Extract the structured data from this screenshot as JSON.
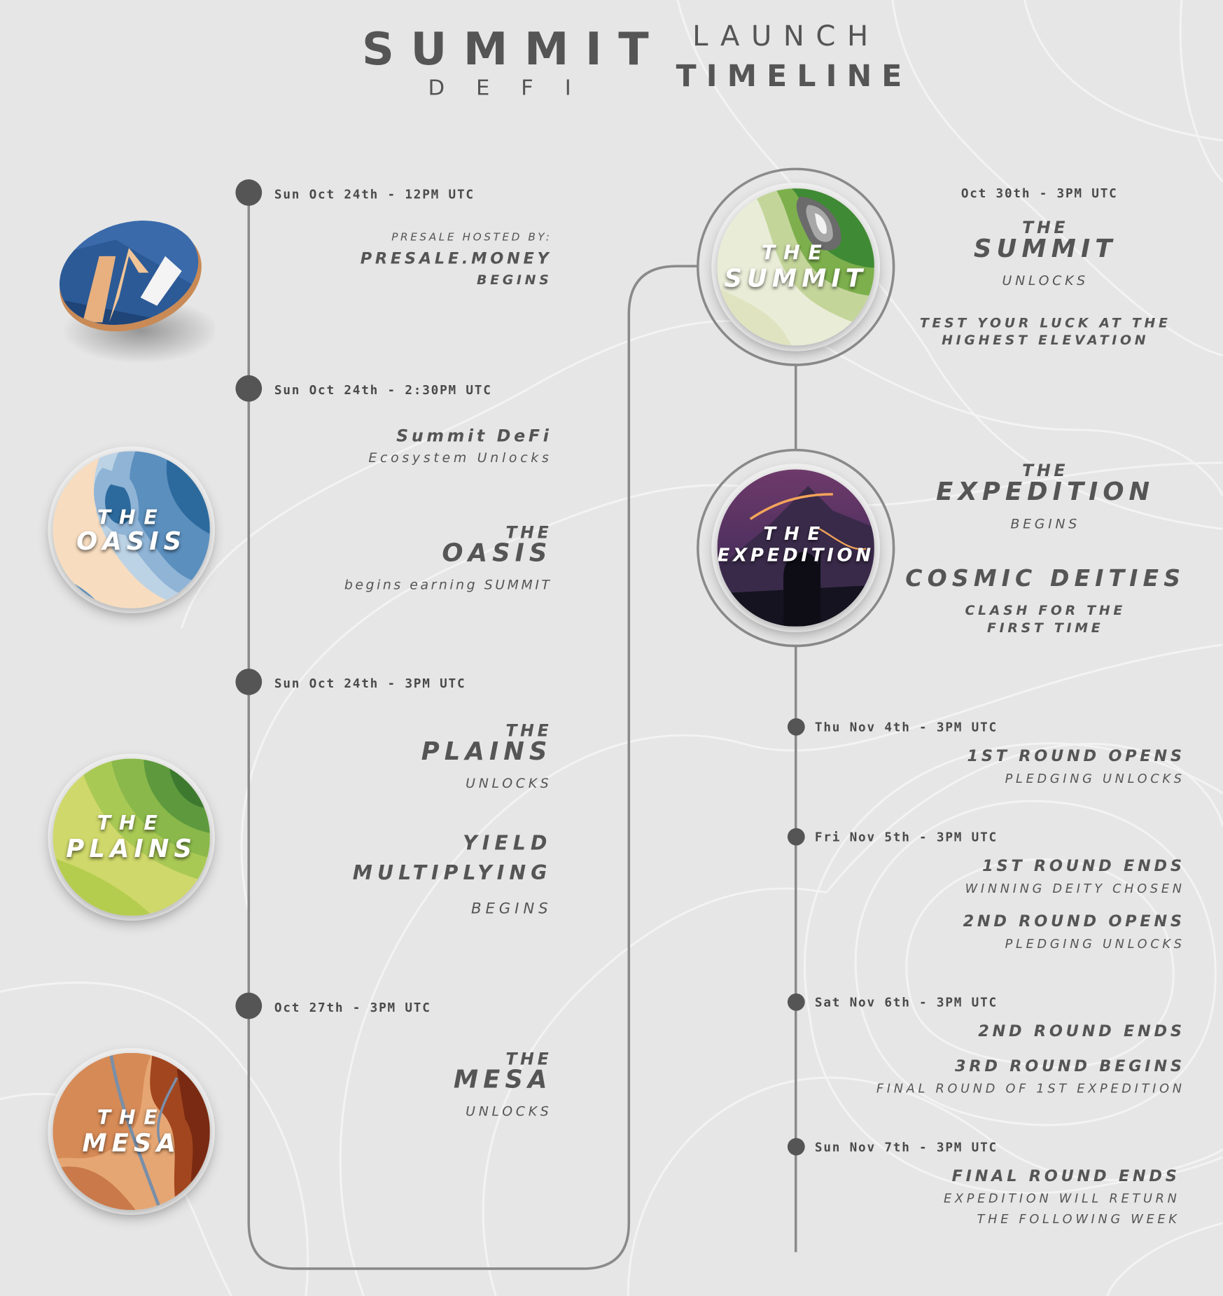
{
  "brand": {
    "name": "SUMMIT",
    "sub": "DEFI"
  },
  "header": {
    "line1": "LAUNCH",
    "line2": "TIMELINE"
  },
  "left": {
    "d1": "Sun Oct 24th - 12PM UTC",
    "presale_label": "PRESALE HOSTED BY:",
    "presale_host": "PRESALE.MONEY",
    "presale_begins": "BEGINS",
    "d2": "Sun Oct 24th - 2:30PM UTC",
    "eco_title": "Summit DeFi",
    "eco_sub": "Ecosystem Unlocks",
    "oasis_the": "THE",
    "oasis_name": "OASIS",
    "oasis_sub": "begins earning SUMMIT",
    "d3": "Sun Oct 24th - 3PM UTC",
    "plains_the": "THE",
    "plains_name": "PLAINS",
    "plains_unlocks": "UNLOCKS",
    "yield_1": "YIELD",
    "yield_2": "MULTIPLYING",
    "yield_begins": "BEGINS",
    "d4": "Oct 27th - 3PM UTC",
    "mesa_the": "THE",
    "mesa_name": "MESA",
    "mesa_unlocks": "UNLOCKS"
  },
  "right": {
    "d1": "Oct 30th - 3PM UTC",
    "summit_the": "THE",
    "summit_name": "SUMMIT",
    "summit_unlocks": "UNLOCKS",
    "luck_1": "TEST YOUR LUCK AT THE",
    "luck_2": "HIGHEST ELEVATION",
    "exp_the": "THE",
    "exp_name": "EXPEDITION",
    "exp_begins": "BEGINS",
    "cosmic": "COSMIC DEITIES",
    "clash_1": "CLASH FOR THE",
    "clash_2": "FIRST TIME",
    "d2": "Thu Nov 4th - 3PM UTC",
    "r1_open": "1ST ROUND OPENS",
    "r1_pledge": "PLEDGING UNLOCKS",
    "d3": "Fri Nov 5th - 3PM UTC",
    "r1_end": "1ST ROUND ENDS",
    "r1_winner": "WINNING DEITY CHOSEN",
    "r2_open": "2ND ROUND OPENS",
    "r2_pledge": "PLEDGING UNLOCKS",
    "d4": "Sat Nov 6th - 3PM UTC",
    "r2_end": "2ND ROUND ENDS",
    "r3_begin": "3RD ROUND BEGINS",
    "r3_final": "FINAL ROUND OF 1ST EXPEDITION",
    "d5": "Sun Nov 7th - 3PM UTC",
    "final_end": "FINAL ROUND ENDS",
    "final_1": "EXPEDITION WILL RETURN",
    "final_2": "THE FOLLOWING WEEK"
  },
  "discs": {
    "oasis": {
      "the": "THE",
      "name": "OASIS"
    },
    "plains": {
      "the": "THE",
      "name": "PLAINS"
    },
    "mesa": {
      "the": "THE",
      "name": "MESA"
    },
    "summit": {
      "the": "THE",
      "name": "SUMMIT"
    },
    "expedition": {
      "the": "THE",
      "name": "EXPEDITION"
    }
  },
  "colors": {
    "background": "#e6e6e6",
    "timeline": "#8a8a8a",
    "dot": "#555555",
    "text": "#555555"
  }
}
